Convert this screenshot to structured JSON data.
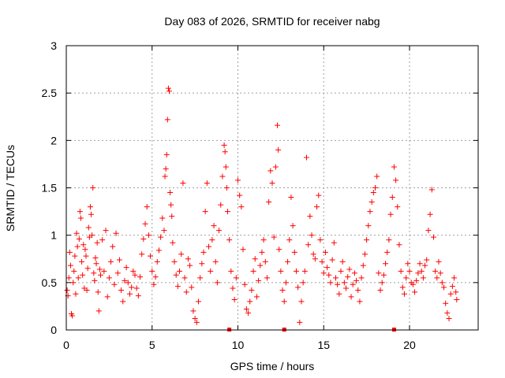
{
  "chart_data": {
    "type": "scatter",
    "title": "Day 083 of 2026, SRMTID for receiver nabg",
    "xlabel": "GPS time / hours",
    "ylabel": "SRMTID / TECUs",
    "xlim": [
      0,
      24
    ],
    "ylim": [
      0,
      3
    ],
    "xticks": [
      0,
      5,
      10,
      15,
      20
    ],
    "yticks": [
      0,
      0.5,
      1,
      1.5,
      2,
      2.5,
      3
    ],
    "xtick_labels": [
      "0",
      "5",
      "10",
      "15",
      "20"
    ],
    "ytick_labels": [
      "0",
      "0.5",
      "1",
      "1.5",
      "2",
      "2.5",
      "3"
    ],
    "grid": true,
    "marker": "+",
    "color": "#ff0000",
    "baseline_marker_times": [
      9.5,
      12.7,
      19.1
    ],
    "series": [
      {
        "name": "SRMTID",
        "points": [
          [
            0.05,
            0.42
          ],
          [
            0.1,
            0.36
          ],
          [
            0.15,
            0.55
          ],
          [
            0.2,
            0.82
          ],
          [
            0.25,
            0.68
          ],
          [
            0.3,
            0.17
          ],
          [
            0.35,
            0.15
          ],
          [
            0.4,
            0.5
          ],
          [
            0.45,
            0.62
          ],
          [
            0.5,
            0.78
          ],
          [
            0.55,
            0.38
          ],
          [
            0.6,
            1.02
          ],
          [
            0.65,
            0.88
          ],
          [
            0.7,
            0.55
          ],
          [
            0.75,
            0.96
          ],
          [
            0.8,
            1.25
          ],
          [
            0.85,
            1.18
          ],
          [
            0.9,
            0.72
          ],
          [
            0.95,
            0.58
          ],
          [
            1.0,
            0.9
          ],
          [
            1.05,
            0.44
          ],
          [
            1.1,
            0.85
          ],
          [
            1.15,
            0.78
          ],
          [
            1.2,
            0.42
          ],
          [
            1.25,
            0.65
          ],
          [
            1.3,
            1.08
          ],
          [
            1.35,
            0.98
          ],
          [
            1.4,
            1.3
          ],
          [
            1.45,
            1.22
          ],
          [
            1.5,
            1.0
          ],
          [
            1.55,
            1.5
          ],
          [
            1.6,
            0.6
          ],
          [
            1.65,
            0.52
          ],
          [
            1.7,
            0.76
          ],
          [
            1.75,
            0.7
          ],
          [
            1.8,
            0.92
          ],
          [
            1.85,
            0.4
          ],
          [
            1.9,
            0.2
          ],
          [
            1.95,
            0.64
          ],
          [
            2.0,
            0.58
          ],
          [
            2.1,
            0.95
          ],
          [
            2.2,
            0.62
          ],
          [
            2.3,
            1.05
          ],
          [
            2.4,
            0.35
          ],
          [
            2.5,
            0.55
          ],
          [
            2.6,
            0.72
          ],
          [
            2.7,
            0.88
          ],
          [
            2.8,
            0.48
          ],
          [
            2.9,
            1.02
          ],
          [
            3.0,
            0.6
          ],
          [
            3.1,
            0.74
          ],
          [
            3.2,
            0.42
          ],
          [
            3.3,
            0.3
          ],
          [
            3.4,
            0.52
          ],
          [
            3.5,
            0.66
          ],
          [
            3.6,
            0.5
          ],
          [
            3.7,
            0.38
          ],
          [
            3.8,
            0.45
          ],
          [
            3.9,
            0.62
          ],
          [
            4.0,
            0.58
          ],
          [
            4.1,
            0.44
          ],
          [
            4.2,
            0.36
          ],
          [
            4.3,
            0.56
          ],
          [
            4.4,
            0.8
          ],
          [
            4.5,
            0.96
          ],
          [
            4.6,
            1.12
          ],
          [
            4.7,
            1.3
          ],
          [
            4.8,
            1.0
          ],
          [
            4.9,
            0.78
          ],
          [
            5.0,
            0.62
          ],
          [
            5.1,
            0.48
          ],
          [
            5.2,
            0.56
          ],
          [
            5.3,
            0.72
          ],
          [
            5.4,
            0.84
          ],
          [
            5.5,
            0.98
          ],
          [
            5.6,
            1.18
          ],
          [
            5.7,
            1.05
          ],
          [
            5.75,
            1.62
          ],
          [
            5.8,
            1.7
          ],
          [
            5.85,
            1.85
          ],
          [
            5.9,
            2.22
          ],
          [
            5.95,
            2.55
          ],
          [
            6.0,
            2.52
          ],
          [
            6.05,
            1.45
          ],
          [
            6.1,
            1.32
          ],
          [
            6.15,
            1.2
          ],
          [
            6.2,
            0.92
          ],
          [
            6.3,
            0.72
          ],
          [
            6.4,
            0.58
          ],
          [
            6.5,
            0.46
          ],
          [
            6.6,
            0.62
          ],
          [
            6.7,
            0.8
          ],
          [
            6.8,
            1.55
          ],
          [
            6.9,
            0.55
          ],
          [
            7.0,
            0.4
          ],
          [
            7.1,
            0.75
          ],
          [
            7.2,
            0.68
          ],
          [
            7.3,
            0.45
          ],
          [
            7.4,
            0.2
          ],
          [
            7.5,
            0.12
          ],
          [
            7.6,
            0.08
          ],
          [
            7.7,
            0.3
          ],
          [
            7.8,
            0.55
          ],
          [
            7.9,
            0.7
          ],
          [
            8.0,
            0.82
          ],
          [
            8.1,
            1.25
          ],
          [
            8.2,
            1.55
          ],
          [
            8.3,
            0.88
          ],
          [
            8.4,
            0.62
          ],
          [
            8.5,
            0.95
          ],
          [
            8.6,
            1.1
          ],
          [
            8.7,
            0.72
          ],
          [
            8.8,
            0.5
          ],
          [
            8.9,
            1.05
          ],
          [
            9.0,
            1.32
          ],
          [
            9.1,
            1.62
          ],
          [
            9.2,
            1.95
          ],
          [
            9.25,
            1.88
          ],
          [
            9.3,
            1.72
          ],
          [
            9.35,
            1.5
          ],
          [
            9.4,
            1.25
          ],
          [
            9.5,
            0.95
          ],
          [
            9.6,
            0.62
          ],
          [
            9.7,
            0.44
          ],
          [
            9.8,
            0.32
          ],
          [
            9.9,
            0.55
          ],
          [
            10.0,
            1.58
          ],
          [
            10.1,
            1.42
          ],
          [
            10.2,
            1.3
          ],
          [
            10.3,
            0.85
          ],
          [
            10.4,
            0.48
          ],
          [
            10.5,
            0.22
          ],
          [
            10.6,
            0.18
          ],
          [
            10.7,
            0.3
          ],
          [
            10.8,
            0.42
          ],
          [
            10.9,
            0.62
          ],
          [
            11.0,
            0.75
          ],
          [
            11.1,
            0.35
          ],
          [
            11.2,
            0.52
          ],
          [
            11.3,
            0.68
          ],
          [
            11.4,
            0.82
          ],
          [
            11.5,
            0.95
          ],
          [
            11.6,
            0.72
          ],
          [
            11.7,
            0.55
          ],
          [
            11.8,
            1.35
          ],
          [
            11.9,
            1.68
          ],
          [
            12.0,
            1.55
          ],
          [
            12.1,
            0.98
          ],
          [
            12.2,
            1.72
          ],
          [
            12.3,
            2.16
          ],
          [
            12.35,
            1.9
          ],
          [
            12.4,
            0.85
          ],
          [
            12.5,
            0.62
          ],
          [
            12.6,
            0.42
          ],
          [
            12.7,
            0.3
          ],
          [
            12.8,
            0.5
          ],
          [
            12.9,
            0.72
          ],
          [
            13.0,
            0.95
          ],
          [
            13.1,
            1.4
          ],
          [
            13.2,
            1.1
          ],
          [
            13.3,
            0.82
          ],
          [
            13.4,
            0.62
          ],
          [
            13.5,
            0.45
          ],
          [
            13.6,
            0.08
          ],
          [
            13.7,
            0.3
          ],
          [
            13.8,
            0.5
          ],
          [
            13.9,
            0.62
          ],
          [
            14.0,
            1.82
          ],
          [
            14.1,
            0.9
          ],
          [
            14.2,
            1.2
          ],
          [
            14.3,
            1.0
          ],
          [
            14.4,
            0.8
          ],
          [
            14.5,
            0.75
          ],
          [
            14.6,
            1.3
          ],
          [
            14.7,
            1.42
          ],
          [
            14.8,
            0.95
          ],
          [
            14.9,
            0.72
          ],
          [
            15.0,
            0.6
          ],
          [
            15.1,
            0.82
          ],
          [
            15.2,
            0.66
          ],
          [
            15.3,
            0.58
          ],
          [
            15.4,
            0.5
          ],
          [
            15.5,
            0.74
          ],
          [
            15.6,
            0.92
          ],
          [
            15.7,
            0.55
          ],
          [
            15.8,
            0.48
          ],
          [
            15.9,
            0.38
          ],
          [
            16.0,
            0.62
          ],
          [
            16.1,
            0.72
          ],
          [
            16.2,
            0.5
          ],
          [
            16.3,
            0.44
          ],
          [
            16.4,
            0.56
          ],
          [
            16.5,
            0.64
          ],
          [
            16.6,
            0.35
          ],
          [
            16.7,
            0.48
          ],
          [
            16.8,
            0.6
          ],
          [
            16.9,
            0.52
          ],
          [
            17.0,
            0.42
          ],
          [
            17.1,
            0.3
          ],
          [
            17.2,
            0.55
          ],
          [
            17.3,
            0.68
          ],
          [
            17.4,
            0.8
          ],
          [
            17.5,
            0.95
          ],
          [
            17.6,
            1.1
          ],
          [
            17.7,
            1.25
          ],
          [
            17.8,
            1.35
          ],
          [
            17.9,
            1.45
          ],
          [
            18.0,
            1.5
          ],
          [
            18.1,
            1.62
          ],
          [
            18.2,
            0.6
          ],
          [
            18.3,
            0.42
          ],
          [
            18.4,
            0.5
          ],
          [
            18.5,
            0.58
          ],
          [
            18.6,
            0.7
          ],
          [
            18.7,
            0.82
          ],
          [
            18.8,
            0.95
          ],
          [
            18.9,
            1.22
          ],
          [
            19.0,
            1.4
          ],
          [
            19.1,
            1.72
          ],
          [
            19.2,
            1.58
          ],
          [
            19.3,
            1.3
          ],
          [
            19.4,
            0.9
          ],
          [
            19.5,
            0.62
          ],
          [
            19.6,
            0.45
          ],
          [
            19.7,
            0.38
          ],
          [
            19.8,
            0.55
          ],
          [
            19.9,
            0.7
          ],
          [
            20.0,
            0.62
          ],
          [
            20.1,
            0.5
          ],
          [
            20.2,
            0.48
          ],
          [
            20.3,
            0.4
          ],
          [
            20.4,
            0.52
          ],
          [
            20.5,
            0.6
          ],
          [
            20.6,
            0.7
          ],
          [
            20.7,
            0.62
          ],
          [
            20.8,
            0.55
          ],
          [
            20.9,
            0.68
          ],
          [
            21.0,
            0.74
          ],
          [
            21.1,
            1.05
          ],
          [
            21.2,
            1.22
          ],
          [
            21.3,
            1.48
          ],
          [
            21.4,
            0.98
          ],
          [
            21.5,
            0.62
          ],
          [
            21.6,
            0.55
          ],
          [
            21.7,
            0.72
          ],
          [
            21.8,
            0.6
          ],
          [
            21.9,
            0.5
          ],
          [
            22.0,
            0.45
          ],
          [
            22.1,
            0.28
          ],
          [
            22.2,
            0.18
          ],
          [
            22.3,
            0.12
          ],
          [
            22.4,
            0.38
          ],
          [
            22.5,
            0.46
          ],
          [
            22.6,
            0.55
          ],
          [
            22.7,
            0.4
          ],
          [
            22.75,
            0.32
          ]
        ]
      }
    ]
  }
}
